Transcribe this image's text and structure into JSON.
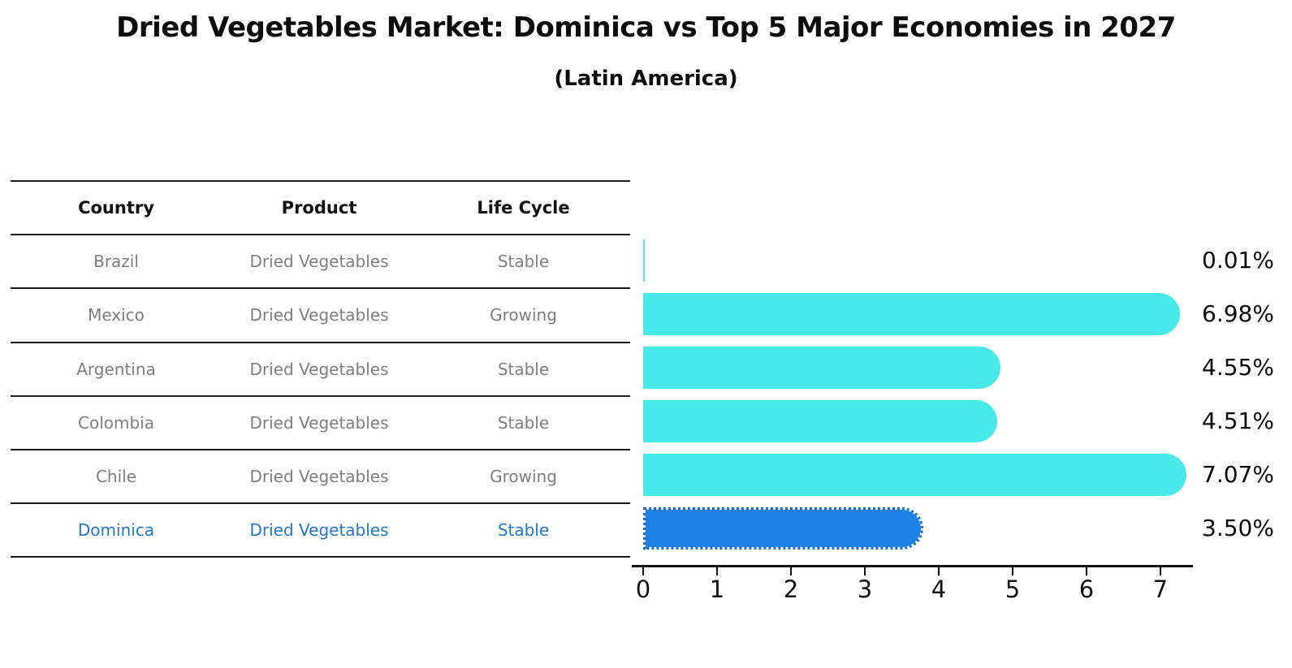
{
  "header": {
    "title": "Dried Vegetables Market: Dominica vs Top 5 Major Economies in 2027",
    "subtitle": "(Latin America)"
  },
  "table": {
    "headers": [
      "Country",
      "Product",
      "Life Cycle"
    ],
    "rows": [
      {
        "country": "Brazil",
        "product": "Dried Vegetables",
        "life_cycle": "Stable",
        "highlight": false
      },
      {
        "country": "Mexico",
        "product": "Dried Vegetables",
        "life_cycle": "Growing",
        "highlight": false
      },
      {
        "country": "Argentina",
        "product": "Dried Vegetables",
        "life_cycle": "Stable",
        "highlight": false
      },
      {
        "country": "Colombia",
        "product": "Dried Vegetables",
        "life_cycle": "Stable",
        "highlight": false
      },
      {
        "country": "Chile",
        "product": "Dried Vegetables",
        "life_cycle": "Growing",
        "highlight": false
      },
      {
        "country": "Dominica",
        "product": "Dried Vegetables",
        "life_cycle": "Stable",
        "highlight": true
      }
    ]
  },
  "chart_data": {
    "type": "bar",
    "orientation": "horizontal",
    "title": "Dried Vegetables Market: Dominica vs Top 5 Major Economies in 2027",
    "subtitle": "(Latin America)",
    "categories": [
      "Brazil",
      "Mexico",
      "Argentina",
      "Colombia",
      "Chile",
      "Dominica"
    ],
    "values": [
      0.01,
      6.98,
      4.55,
      4.51,
      7.07,
      3.5
    ],
    "value_labels": [
      "0.01%",
      "6.98%",
      "4.55%",
      "4.51%",
      "7.07%",
      "3.50%"
    ],
    "highlight_index": 5,
    "x_ticks": [
      "0",
      "1",
      "2",
      "3",
      "4",
      "5",
      "6",
      "7"
    ],
    "xlim": [
      0,
      7.43
    ],
    "xlabel": "",
    "ylabel": "",
    "grid": false,
    "legend": null,
    "colors": {
      "bar": "#4AE9E9",
      "highlight_bar": "#1E82E8",
      "highlight_bar_edge": "#1A6FD6",
      "highlight_text": "#2577CB",
      "table_text": "#7E7E7E",
      "axis": "#111111"
    }
  }
}
